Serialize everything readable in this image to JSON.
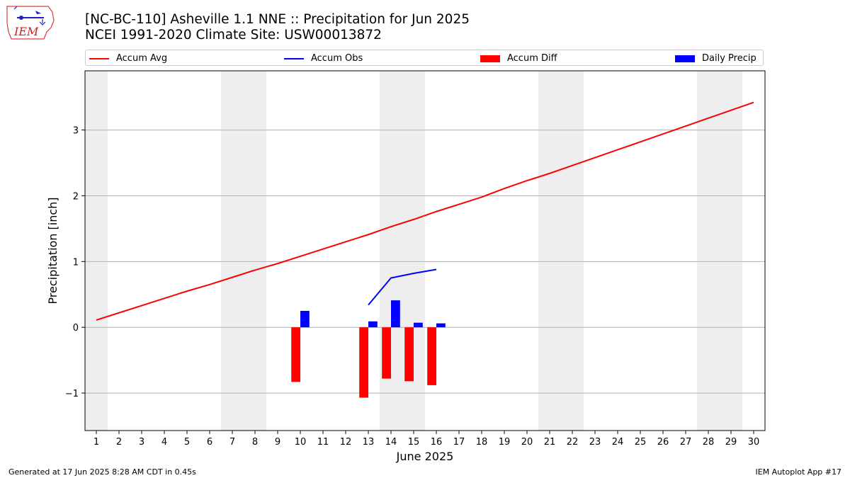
{
  "header": {
    "title_line1": "[NC-BC-110] Asheville 1.1 NNE :: Precipitation for Jun 2025",
    "title_line2": "NCEI 1991-2020 Climate Site: USW00013872"
  },
  "logo": {
    "text": "IEM",
    "icon": "iem-iowa-weather-logo"
  },
  "legend": {
    "items": [
      {
        "label": "Accum Avg",
        "kind": "line",
        "color": "#ff0000"
      },
      {
        "label": "Accum Obs",
        "kind": "line",
        "color": "#0000ff"
      },
      {
        "label": "Accum Diff",
        "kind": "patch",
        "color": "#ff0000"
      },
      {
        "label": "Daily Precip",
        "kind": "patch",
        "color": "#0000ff"
      }
    ]
  },
  "footer": {
    "generated": "Generated at 17 Jun 2025 8:28 AM CDT in 0.45s",
    "app": "IEM Autoplot App #17"
  },
  "chart_data": {
    "type": "bar",
    "title": "[NC-BC-110] Asheville 1.1 NNE :: Precipitation for Jun 2025",
    "subtitle": "NCEI 1991-2020 Climate Site: USW00013872",
    "xlabel": "June 2025",
    "ylabel": "Precipitation [inch]",
    "xlim": [
      0.5,
      30.5
    ],
    "ylim": [
      -1.57,
      3.9
    ],
    "yticks": [
      -1,
      0,
      1,
      2,
      3
    ],
    "yticklabels": [
      "−1",
      "0",
      "1",
      "2",
      "3"
    ],
    "grid": "horizontal",
    "legend_position": "top",
    "weekend_shading": [
      [
        0.5,
        1.5
      ],
      [
        6.5,
        8.5
      ],
      [
        13.5,
        15.5
      ],
      [
        20.5,
        22.5
      ],
      [
        27.5,
        29.5
      ]
    ],
    "days": [
      1,
      2,
      3,
      4,
      5,
      6,
      7,
      8,
      9,
      10,
      11,
      12,
      13,
      14,
      15,
      16,
      17,
      18,
      19,
      20,
      21,
      22,
      23,
      24,
      25,
      26,
      27,
      28,
      29,
      30
    ],
    "series": [
      {
        "name": "Accum Avg",
        "kind": "line",
        "color": "#ff0000",
        "x": [
          1,
          2,
          3,
          4,
          5,
          6,
          7,
          8,
          9,
          10,
          11,
          12,
          13,
          14,
          15,
          16,
          17,
          18,
          19,
          20,
          21,
          22,
          23,
          24,
          25,
          26,
          27,
          28,
          29,
          30
        ],
        "values": [
          0.11,
          0.22,
          0.33,
          0.44,
          0.55,
          0.65,
          0.76,
          0.87,
          0.97,
          1.08,
          1.19,
          1.3,
          1.41,
          1.53,
          1.64,
          1.76,
          1.87,
          1.98,
          2.11,
          2.23,
          2.34,
          2.46,
          2.58,
          2.7,
          2.82,
          2.94,
          3.06,
          3.18,
          3.3,
          3.42
        ]
      },
      {
        "name": "Accum Obs",
        "kind": "line",
        "color": "#0000ff",
        "x": [
          13,
          14,
          15,
          16
        ],
        "values": [
          0.34,
          0.75,
          0.82,
          0.88
        ]
      },
      {
        "name": "Accum Diff",
        "kind": "bar",
        "color": "#ff0000",
        "x": [
          10,
          13,
          14,
          15,
          16
        ],
        "values": [
          -0.83,
          -1.07,
          -0.78,
          -0.82,
          -0.88
        ]
      },
      {
        "name": "Daily Precip",
        "kind": "bar",
        "color": "#0000ff",
        "x": [
          10,
          13,
          14,
          15,
          16
        ],
        "values": [
          0.25,
          0.09,
          0.41,
          0.07,
          0.06
        ]
      }
    ]
  }
}
